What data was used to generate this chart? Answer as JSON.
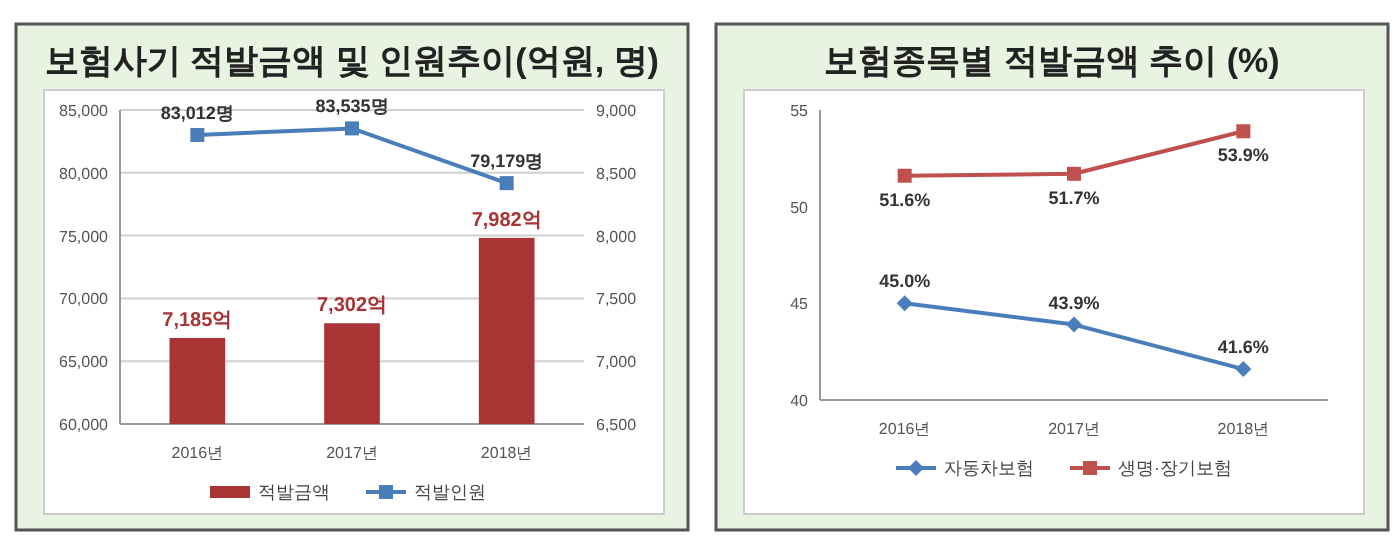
{
  "chart_data": [
    {
      "type": "bar",
      "title": "보험사기 적발금액 및 인원추이(억원, 명)",
      "categories": [
        "2016년",
        "2017년",
        "2018년"
      ],
      "series": [
        {
          "name": "적발금액",
          "axis": "y2",
          "color": "#a83434",
          "values": [
            7185,
            7302,
            7982
          ],
          "value_labels": [
            "7,185억",
            "7,302억",
            "7,982억"
          ]
        },
        {
          "name": "적발인원",
          "type": "line",
          "color": "#4a7ebb",
          "marker": "square",
          "values": [
            83012,
            83535,
            79179
          ],
          "value_labels": [
            "83,012명",
            "83,535명",
            "79,179명"
          ]
        }
      ],
      "ylim": [
        60000,
        85000
      ],
      "yticks": [
        {
          "value": 60000,
          "label": "60,000"
        },
        {
          "value": 65000,
          "label": "65,000"
        },
        {
          "value": 70000,
          "label": "70,000"
        },
        {
          "value": 75000,
          "label": "75,000"
        },
        {
          "value": 80000,
          "label": "80,000"
        },
        {
          "value": 85000,
          "label": "85,000"
        }
      ],
      "y2lim": [
        6500,
        9000
      ],
      "y2ticks": [
        {
          "value": 6500,
          "label": "6,500"
        },
        {
          "value": 7000,
          "label": "7,000"
        },
        {
          "value": 7500,
          "label": "7,500"
        },
        {
          "value": 8000,
          "label": "8,000"
        },
        {
          "value": 8500,
          "label": "8,500"
        },
        {
          "value": 9000,
          "label": "9,000"
        }
      ],
      "grid": "y",
      "legend": "bottom"
    },
    {
      "type": "line",
      "title": "보험종목별 적발금액 추이 (%)",
      "categories": [
        "2016년",
        "2017년",
        "2018년"
      ],
      "series": [
        {
          "name": "자동차보험",
          "color": "#4a7ebb",
          "marker": "diamond",
          "values": [
            45.0,
            43.9,
            41.6
          ],
          "value_labels": [
            "45.0%",
            "43.9%",
            "41.6%"
          ]
        },
        {
          "name": "생명·장기보험",
          "color": "#c0504d",
          "marker": "square",
          "values": [
            51.6,
            51.7,
            53.9
          ],
          "value_labels": [
            "51.6%",
            "51.7%",
            "53.9%"
          ]
        }
      ],
      "ylim": [
        40,
        55
      ],
      "yticks": [
        40,
        45,
        50,
        55
      ],
      "legend": "bottom"
    }
  ]
}
